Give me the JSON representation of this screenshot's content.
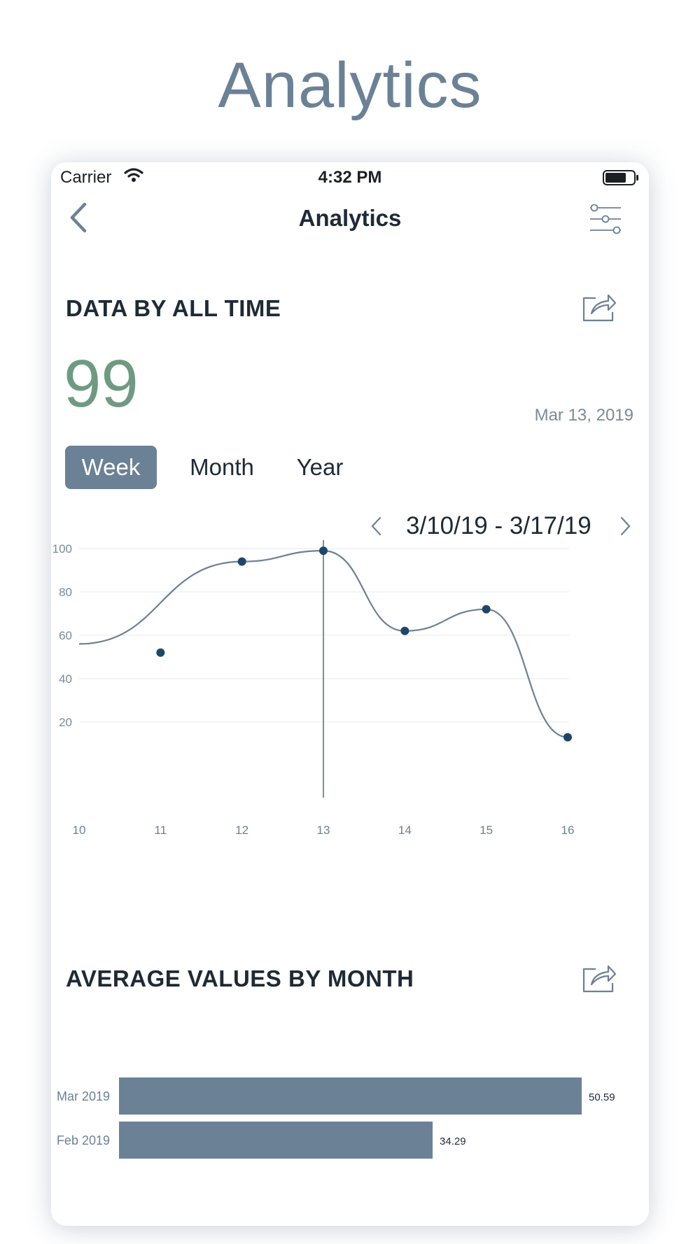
{
  "hero_title": "Analytics",
  "status_bar": {
    "carrier": "Carrier",
    "time": "4:32 PM"
  },
  "nav": {
    "title": "Analytics",
    "back_icon": "chevron-left-icon",
    "filter_icon": "sliders-icon"
  },
  "summary": {
    "title": "DATA BY ALL TIME",
    "value": "99",
    "date": "Mar 13, 2019",
    "share_icon": "share-icon"
  },
  "periods": [
    {
      "label": "Week",
      "active": true
    },
    {
      "label": "Month",
      "active": false
    },
    {
      "label": "Year",
      "active": false
    }
  ],
  "date_range": {
    "label": "3/10/19 - 3/17/19"
  },
  "colors": {
    "accent": "#6b8196",
    "value_green": "#6f9a82",
    "point": "#1e4668",
    "cursor": "#6f9a82",
    "bar": "#6b8196"
  },
  "chart_data": [
    {
      "type": "line",
      "x": [
        10,
        11,
        12,
        13,
        14,
        15,
        16
      ],
      "x_ticks": [
        "10",
        "11",
        "12",
        "13",
        "14",
        "15",
        "16"
      ],
      "y_ticks": [
        "20",
        "40",
        "60",
        "80",
        "100"
      ],
      "ylim": [
        0,
        108
      ],
      "xlim": [
        10,
        16
      ],
      "points": [
        {
          "x": 11,
          "y": 52
        },
        {
          "x": 12,
          "y": 94
        },
        {
          "x": 13,
          "y": 99
        },
        {
          "x": 14,
          "y": 62
        },
        {
          "x": 15,
          "y": 72
        },
        {
          "x": 16,
          "y": 13
        }
      ],
      "curve": [
        {
          "x": 10,
          "y": 56
        },
        {
          "x": 12,
          "y": 94
        },
        {
          "x": 13,
          "y": 99
        },
        {
          "x": 14,
          "y": 62
        },
        {
          "x": 15,
          "y": 72
        },
        {
          "x": 16,
          "y": 13
        }
      ],
      "highlight_x": 13,
      "grid": true
    },
    {
      "type": "bar",
      "title": "AVERAGE VALUES BY MONTH",
      "orientation": "horizontal",
      "categories": [
        "Mar 2019",
        "Feb 2019"
      ],
      "values": [
        50.59,
        34.29
      ],
      "value_labels": [
        "50.59",
        "34.29"
      ],
      "xlim": [
        0,
        50.59
      ]
    }
  ]
}
